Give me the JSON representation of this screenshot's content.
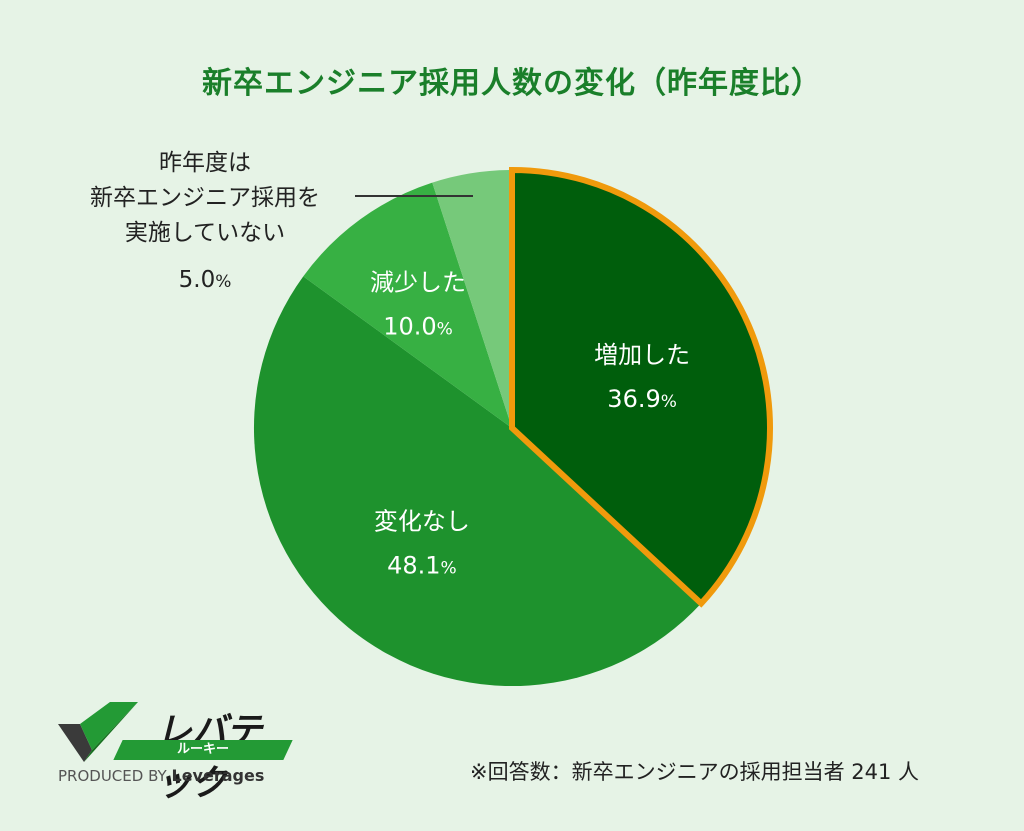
{
  "chart_data": {
    "type": "pie",
    "title": "新卒エンジニア採用人数の変化（昨年度比）",
    "slices": [
      {
        "label": "増加した",
        "value": 36.9,
        "color": "#005e0c",
        "highlight": true
      },
      {
        "label": "変化なし",
        "value": 48.1,
        "color": "#1e922d"
      },
      {
        "label": "減少した",
        "value": 10.0,
        "color": "#37b043"
      },
      {
        "label": "昨年度は新卒エンジニア採用を実施していない",
        "value": 5.0,
        "color": "#76c97a"
      }
    ],
    "value_labels": [
      "36.9",
      "48.1",
      "10.0",
      "5.0"
    ],
    "unit": "%",
    "highlight_color": "#f09a0c"
  },
  "outside_label": {
    "lines": [
      "昨年度は",
      "新卒エンジニア採用を",
      "実施していない"
    ],
    "value": "5.0",
    "unit": "%"
  },
  "logo": {
    "brand": "レバテック",
    "sub": "ルーキー",
    "credit_prefix": "PRODUCED BY",
    "credit_brand": "Leverages"
  },
  "footnote": "※回答数：新卒エンジニアの採用担当者 241 人"
}
